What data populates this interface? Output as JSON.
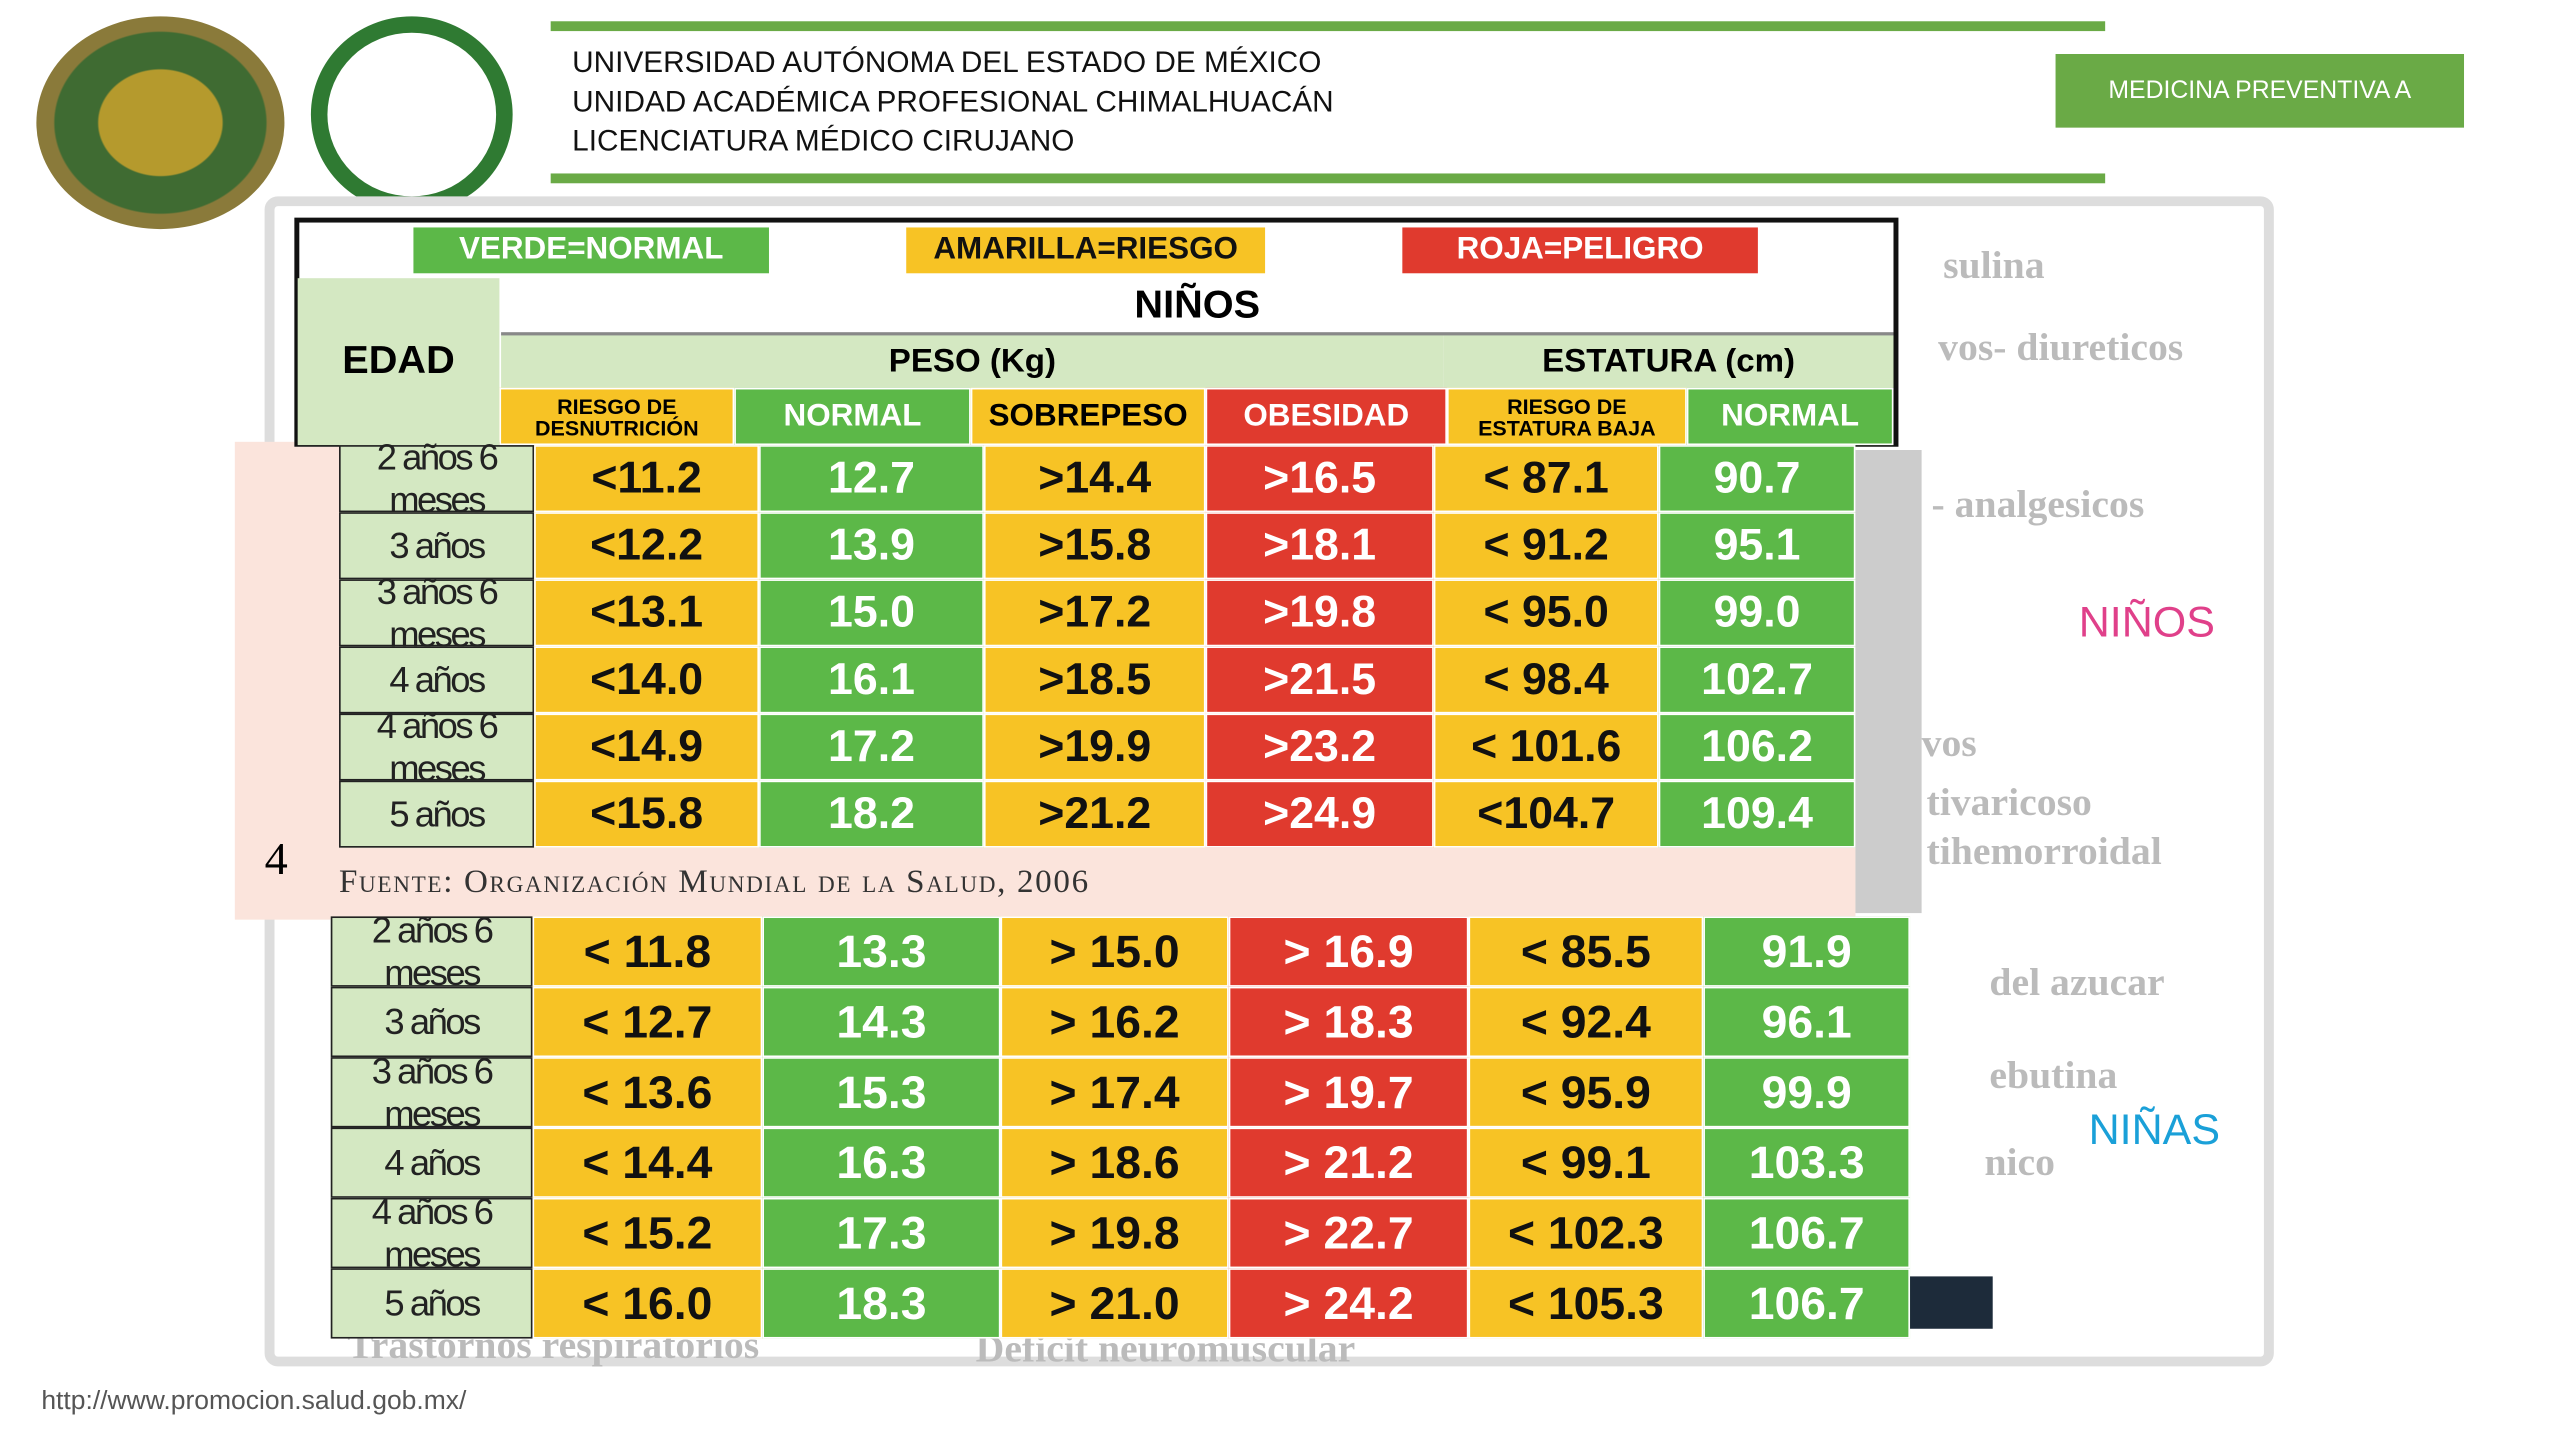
{
  "header": {
    "lines": [
      "UNIVERSIDAD AUTÓNOMA DEL ESTADO DE MÉXICO",
      "UNIDAD ACADÉMICA PROFESIONAL CHIMALHUACÁN",
      "LICENCIATURA MÉDICO CIRUJANO"
    ],
    "badge": "MEDICINA PREVENTIVA A"
  },
  "background_text": [
    "sulina",
    "vos- diureticos",
    "- analgesicos",
    "vos",
    "tivaricoso",
    "tihemorroidal",
    "del azucar",
    "ebutina",
    "nico",
    "Trastornos respiratorios",
    "Deficit neuromuscular"
  ],
  "side_labels": [
    "NIÑOS",
    "NIÑAS"
  ],
  "table": {
    "legend": [
      "VERDE=NORMAL",
      "AMARILLA=RIESGO",
      "ROJA=PELIGRO"
    ],
    "title": "NIÑOS",
    "age_header": "EDAD",
    "groups": [
      "PESO (Kg)",
      "ESTATURA (cm)"
    ],
    "columns": [
      "RIESGO DE DESNUTRICIÓN",
      "NORMAL",
      "SOBREPESO",
      "OBESIDAD",
      "RIESGO DE ESTATURA BAJA",
      "NORMAL"
    ],
    "boys": [
      {
        "age": "2 años 6 meses",
        "values": [
          "<11.2",
          "12.7",
          ">14.4",
          ">16.5",
          "< 87.1",
          "90.7"
        ]
      },
      {
        "age": "3 años",
        "values": [
          "<12.2",
          "13.9",
          ">15.8",
          ">18.1",
          "< 91.2",
          "95.1"
        ]
      },
      {
        "age": "3 años 6 meses",
        "values": [
          "<13.1",
          "15.0",
          ">17.2",
          ">19.8",
          "< 95.0",
          "99.0"
        ]
      },
      {
        "age": "4 años",
        "values": [
          "<14.0",
          "16.1",
          ">18.5",
          ">21.5",
          "< 98.4",
          "102.7"
        ]
      },
      {
        "age": "4 años 6 meses",
        "values": [
          "<14.9",
          "17.2",
          ">19.9",
          ">23.2",
          "< 101.6",
          "106.2"
        ]
      },
      {
        "age": "5 años",
        "values": [
          "<15.8",
          "18.2",
          ">21.2",
          ">24.9",
          "<104.7",
          "109.4"
        ]
      }
    ],
    "source": "Fuente: Organización Mundial de la Salud, 2006",
    "slide_number": "4",
    "girls": [
      {
        "age": "2 años 6 meses",
        "values": [
          "< 11.8",
          "13.3",
          "> 15.0",
          "> 16.9",
          "< 85.5",
          "91.9"
        ]
      },
      {
        "age": "3 años",
        "values": [
          "< 12.7",
          "14.3",
          "> 16.2",
          "> 18.3",
          "< 92.4",
          "96.1"
        ]
      },
      {
        "age": "3 años 6 meses",
        "values": [
          "< 13.6",
          "15.3",
          "> 17.4",
          "> 19.7",
          "< 95.9",
          "99.9"
        ]
      },
      {
        "age": "4 años",
        "values": [
          "< 14.4",
          "16.3",
          "> 18.6",
          "> 21.2",
          "< 99.1",
          "103.3"
        ]
      },
      {
        "age": "4 años 6 meses",
        "values": [
          "< 15.2",
          "17.3",
          "> 19.8",
          "> 22.7",
          "< 102.3",
          "106.7"
        ]
      },
      {
        "age": "5 años",
        "values": [
          "< 16.0",
          "18.3",
          "> 21.0",
          "> 24.2",
          "< 105.3",
          "106.7"
        ]
      }
    ]
  },
  "footer": {
    "url": "http://www.promocion.salud.gob.mx/"
  }
}
